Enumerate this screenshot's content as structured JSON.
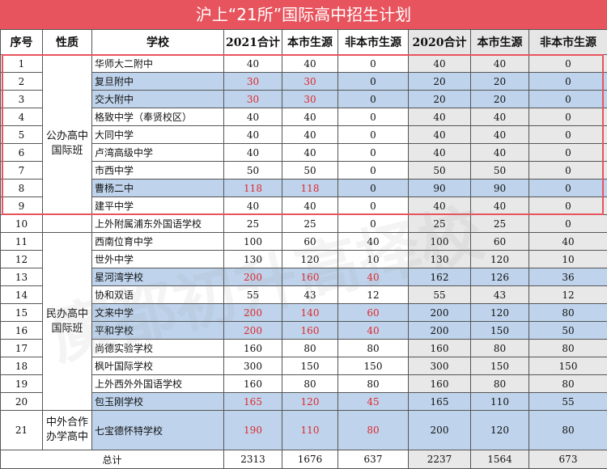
{
  "title": "沪上“21所”国际高中招生计划",
  "watermark": "魔都初升高择校",
  "headers": [
    "序号",
    "性质",
    "学校",
    "2021合计",
    "本市生源",
    "非本市生源",
    "2020合计",
    "本市生源",
    "非本市生源"
  ],
  "groups": [
    {
      "label": "公办高中国际班"
    },
    {
      "label": "民办高中国际班"
    },
    {
      "label": "中外合作办学高中"
    }
  ],
  "rows": [
    {
      "no": "1",
      "school": "华师大二附中",
      "v": [
        "40",
        "40",
        "0",
        "40",
        "40",
        "0"
      ]
    },
    {
      "no": "2",
      "school": "复旦附中",
      "v": [
        "30",
        "30",
        "0",
        "20",
        "20",
        "0"
      ]
    },
    {
      "no": "3",
      "school": "交大附中",
      "v": [
        "30",
        "30",
        "0",
        "20",
        "20",
        "0"
      ]
    },
    {
      "no": "4",
      "school": "格致中学（奉贤校区）",
      "v": [
        "40",
        "40",
        "0",
        "40",
        "40",
        "0"
      ]
    },
    {
      "no": "5",
      "school": "大同中学",
      "v": [
        "40",
        "40",
        "0",
        "40",
        "40",
        "0"
      ]
    },
    {
      "no": "6",
      "school": "卢湾高级中学",
      "v": [
        "40",
        "40",
        "0",
        "40",
        "40",
        "0"
      ]
    },
    {
      "no": "7",
      "school": "市西中学",
      "v": [
        "50",
        "50",
        "0",
        "50",
        "50",
        "0"
      ]
    },
    {
      "no": "8",
      "school": "曹杨二中",
      "v": [
        "118",
        "118",
        "0",
        "90",
        "90",
        "0"
      ]
    },
    {
      "no": "9",
      "school": "建平中学",
      "v": [
        "40",
        "40",
        "0",
        "40",
        "40",
        "0"
      ]
    },
    {
      "no": "10",
      "school": "上外附属浦东外国语学校",
      "v": [
        "25",
        "25",
        "0",
        "25",
        "25",
        "0"
      ]
    },
    {
      "no": "11",
      "school": "西南位育中学",
      "v": [
        "100",
        "60",
        "40",
        "100",
        "60",
        "40"
      ]
    },
    {
      "no": "12",
      "school": "世外中学",
      "v": [
        "130",
        "120",
        "10",
        "130",
        "120",
        "10"
      ]
    },
    {
      "no": "13",
      "school": "星河湾学校",
      "v": [
        "200",
        "160",
        "40",
        "162",
        "126",
        "36"
      ]
    },
    {
      "no": "14",
      "school": "协和双语",
      "v": [
        "55",
        "43",
        "12",
        "55",
        "43",
        "12"
      ]
    },
    {
      "no": "15",
      "school": "文来中学",
      "v": [
        "200",
        "140",
        "60",
        "200",
        "120",
        "80"
      ]
    },
    {
      "no": "16",
      "school": "平和学校",
      "v": [
        "200",
        "160",
        "40",
        "200",
        "150",
        "50"
      ]
    },
    {
      "no": "17",
      "school": "尚德实验学校",
      "v": [
        "160",
        "80",
        "80",
        "160",
        "80",
        "80"
      ]
    },
    {
      "no": "18",
      "school": "枫叶国际学校",
      "v": [
        "300",
        "150",
        "150",
        "300",
        "150",
        "150"
      ]
    },
    {
      "no": "19",
      "school": "上外西外外国语学校",
      "v": [
        "160",
        "80",
        "80",
        "160",
        "80",
        "80"
      ]
    },
    {
      "no": "20",
      "school": "包玉刚学校",
      "v": [
        "165",
        "120",
        "45",
        "165",
        "110",
        "55"
      ]
    },
    {
      "no": "21",
      "school": "七宝德怀特学校",
      "v": [
        "190",
        "110",
        "80",
        "200",
        "120",
        "80"
      ]
    }
  ],
  "total": {
    "label": "总计",
    "v": [
      "2313",
      "1676",
      "637",
      "2237",
      "1564",
      "673"
    ]
  }
}
